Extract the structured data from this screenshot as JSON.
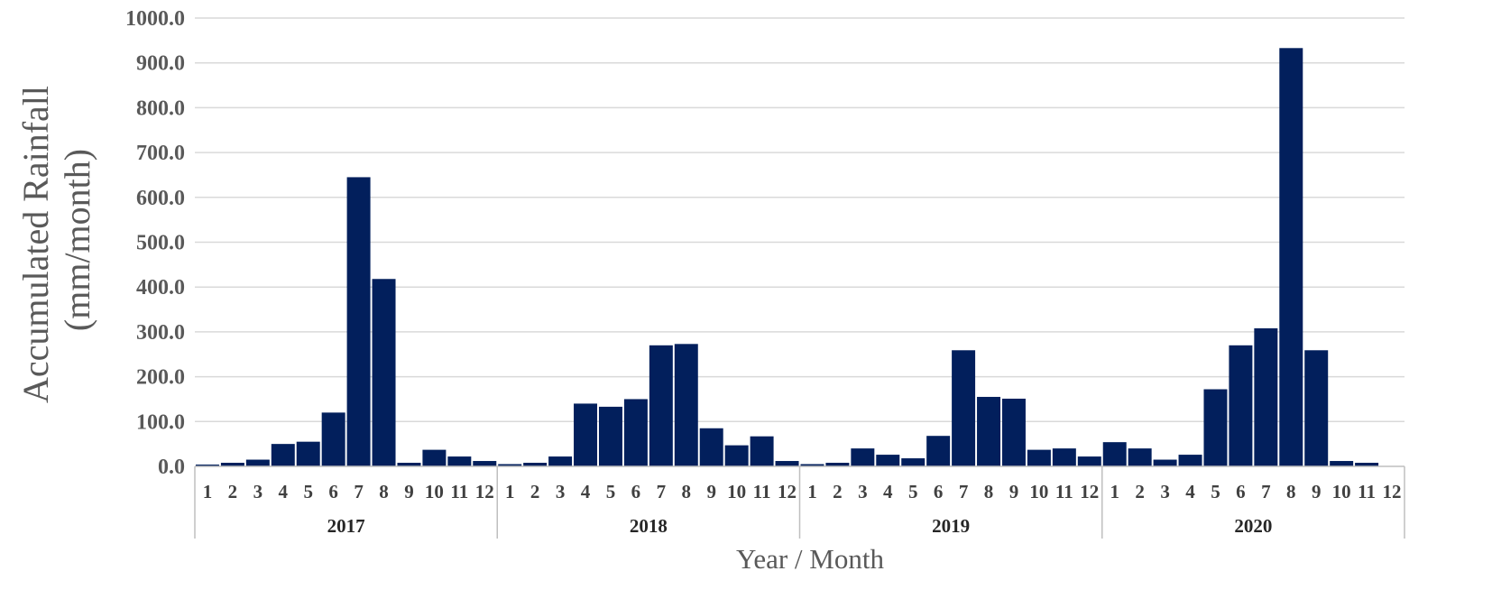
{
  "chart_data": {
    "type": "bar",
    "title": "",
    "xlabel": "Year / Month",
    "ylabel_line1": "Accumulated Rainfall",
    "ylabel_line2": "(mm/month)",
    "ylim": [
      0,
      1000
    ],
    "yticks": [
      "0.0",
      "100.0",
      "200.0",
      "300.0",
      "400.0",
      "500.0",
      "600.0",
      "700.0",
      "800.0",
      "900.0",
      "1000.0"
    ],
    "grid": true,
    "legend": "none",
    "bar_color": "#021f5c",
    "groups": [
      {
        "year": "2017",
        "months": [
          "1",
          "2",
          "3",
          "4",
          "5",
          "6",
          "7",
          "8",
          "9",
          "10",
          "11",
          "12"
        ],
        "values": [
          4,
          8,
          15,
          50,
          55,
          120,
          645,
          418,
          8,
          37,
          22,
          12
        ]
      },
      {
        "year": "2018",
        "months": [
          "1",
          "2",
          "3",
          "4",
          "5",
          "6",
          "7",
          "8",
          "9",
          "10",
          "11",
          "12"
        ],
        "values": [
          5,
          8,
          22,
          140,
          133,
          150,
          270,
          273,
          85,
          47,
          67,
          12
        ]
      },
      {
        "year": "2019",
        "months": [
          "1",
          "2",
          "3",
          "4",
          "5",
          "6",
          "7",
          "8",
          "9",
          "10",
          "11",
          "12"
        ],
        "values": [
          5,
          8,
          40,
          26,
          18,
          68,
          259,
          155,
          151,
          37,
          40,
          22
        ]
      },
      {
        "year": "2020",
        "months": [
          "1",
          "2",
          "3",
          "4",
          "5",
          "6",
          "7",
          "8",
          "9",
          "10",
          "11",
          "12"
        ],
        "values": [
          54,
          40,
          15,
          26,
          172,
          270,
          308,
          933,
          259,
          12,
          8,
          0
        ]
      }
    ]
  }
}
